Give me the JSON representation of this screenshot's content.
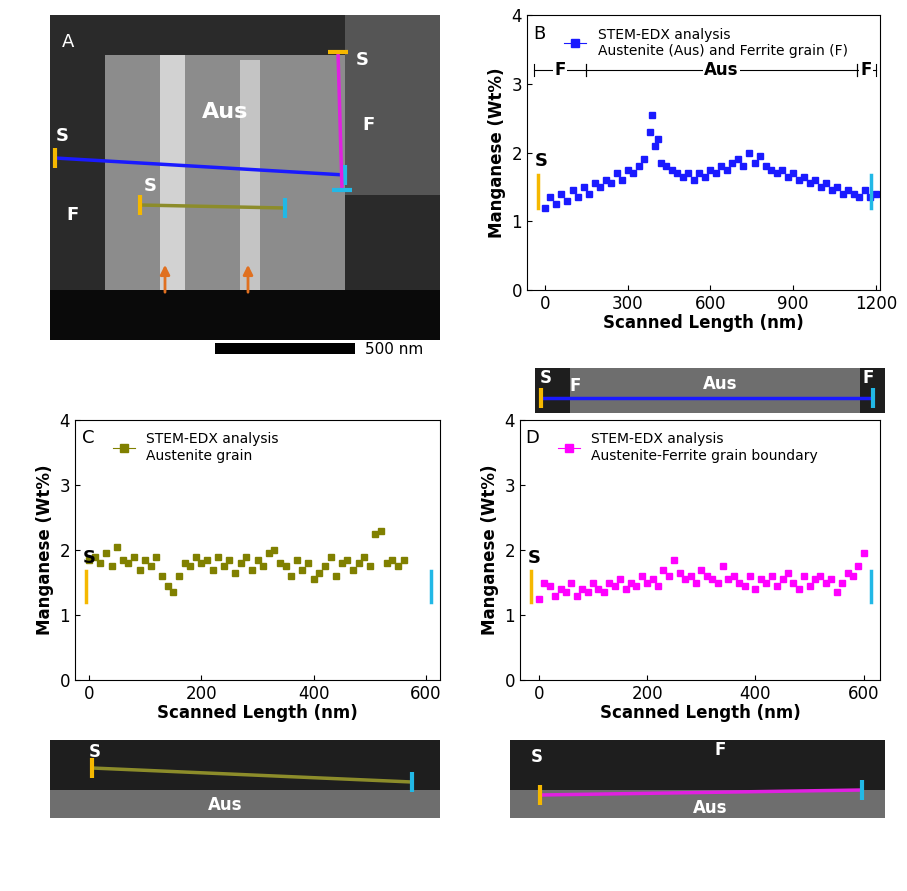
{
  "image_panel": {
    "panel_label": "A",
    "grain_label": "Aus",
    "scan_start_labels": [
      "S",
      "S",
      "S"
    ],
    "ferrite_labels": [
      "F",
      "F"
    ],
    "scale_bar": "500 nm"
  },
  "chart_data": [
    {
      "type": "scatter",
      "panel_label": "B",
      "scan_start_label": "S",
      "x_label": "Scanned Length (nm)",
      "y_label": "Manganese (Wt%)",
      "xlim": [
        -65,
        1215
      ],
      "xticks": [
        0,
        300,
        600,
        900,
        1200
      ],
      "ylim": [
        0,
        4
      ],
      "yticks": [
        0,
        1,
        2,
        3,
        4
      ],
      "legend": "upper left",
      "regions": [
        {
          "label": "F",
          "from": -40,
          "to": 150
        },
        {
          "label": "Aus",
          "from": 150,
          "to": 1130
        },
        {
          "label": "F",
          "from": 1130,
          "to": 1200
        }
      ],
      "image_strip": [
        "S",
        "F",
        "Aus",
        "F"
      ],
      "x": [
        0,
        20,
        40,
        60,
        80,
        100,
        120,
        140,
        160,
        180,
        200,
        220,
        240,
        260,
        280,
        300,
        320,
        340,
        360,
        380,
        390,
        400,
        410,
        420,
        440,
        460,
        480,
        500,
        520,
        540,
        560,
        580,
        600,
        620,
        640,
        660,
        680,
        700,
        720,
        740,
        760,
        780,
        800,
        820,
        840,
        860,
        880,
        900,
        920,
        940,
        960,
        980,
        1000,
        1020,
        1040,
        1060,
        1080,
        1100,
        1120,
        1140,
        1160,
        1180,
        1200
      ],
      "series": [
        {
          "name": "STEM-EDX analysis\nAustenite (Aus) and Ferrite grain (F)",
          "color": "#1a1aff",
          "marker": "square",
          "line_style": "none",
          "values": [
            1.2,
            1.35,
            1.25,
            1.4,
            1.3,
            1.45,
            1.35,
            1.5,
            1.4,
            1.55,
            1.5,
            1.6,
            1.55,
            1.7,
            1.6,
            1.75,
            1.7,
            1.8,
            1.9,
            2.3,
            2.55,
            2.1,
            2.2,
            1.85,
            1.8,
            1.75,
            1.7,
            1.65,
            1.7,
            1.6,
            1.7,
            1.65,
            1.75,
            1.7,
            1.8,
            1.75,
            1.85,
            1.9,
            1.8,
            2.0,
            1.85,
            1.95,
            1.8,
            1.75,
            1.7,
            1.75,
            1.65,
            1.7,
            1.6,
            1.65,
            1.55,
            1.6,
            1.5,
            1.55,
            1.45,
            1.5,
            1.4,
            1.45,
            1.4,
            1.35,
            1.45,
            1.35,
            1.4
          ]
        }
      ]
    },
    {
      "type": "scatter",
      "panel_label": "C",
      "scan_start_label": "S",
      "x_label": "Scanned Length (nm)",
      "y_label": "Manganese (Wt%)",
      "xlim": [
        -25,
        625
      ],
      "xticks": [
        0,
        200,
        400,
        600
      ],
      "ylim": [
        0,
        4
      ],
      "yticks": [
        0,
        1,
        2,
        3,
        4
      ],
      "legend": "upper left",
      "image_strip": [
        "S",
        "Aus"
      ],
      "x": [
        0,
        10,
        20,
        30,
        40,
        50,
        60,
        70,
        80,
        90,
        100,
        110,
        120,
        130,
        140,
        150,
        160,
        170,
        180,
        190,
        200,
        210,
        220,
        230,
        240,
        250,
        260,
        270,
        280,
        290,
        300,
        310,
        320,
        330,
        340,
        350,
        360,
        370,
        380,
        390,
        400,
        410,
        420,
        430,
        440,
        450,
        460,
        470,
        480,
        490,
        500,
        510,
        520,
        530,
        540,
        550,
        560
      ],
      "series": [
        {
          "name": "STEM-EDX analysis\nAustenite grain",
          "color": "#808000",
          "marker": "square",
          "line_style": "none",
          "values": [
            1.85,
            1.9,
            1.8,
            1.95,
            1.75,
            2.05,
            1.85,
            1.8,
            1.9,
            1.7,
            1.85,
            1.75,
            1.9,
            1.6,
            1.45,
            1.35,
            1.6,
            1.8,
            1.75,
            1.9,
            1.8,
            1.85,
            1.7,
            1.9,
            1.75,
            1.85,
            1.65,
            1.8,
            1.9,
            1.7,
            1.85,
            1.75,
            1.95,
            2.0,
            1.8,
            1.75,
            1.6,
            1.85,
            1.7,
            1.8,
            1.55,
            1.65,
            1.75,
            1.9,
            1.6,
            1.8,
            1.85,
            1.7,
            1.8,
            1.9,
            1.75,
            2.25,
            2.3,
            1.8,
            1.85,
            1.75,
            1.85
          ]
        }
      ]
    },
    {
      "type": "scatter",
      "panel_label": "D",
      "scan_start_label": "S",
      "x_label": "Scanned Length (nm)",
      "y_label": "Manganese (Wt%)",
      "xlim": [
        -35,
        630
      ],
      "xticks": [
        0,
        200,
        400,
        600
      ],
      "ylim": [
        0,
        4
      ],
      "yticks": [
        0,
        1,
        2,
        3,
        4
      ],
      "legend": "upper left",
      "image_strip": [
        "S",
        "F",
        "Aus"
      ],
      "x": [
        0,
        10,
        20,
        30,
        40,
        50,
        60,
        70,
        80,
        90,
        100,
        110,
        120,
        130,
        140,
        150,
        160,
        170,
        180,
        190,
        200,
        210,
        220,
        230,
        240,
        250,
        260,
        270,
        280,
        290,
        300,
        310,
        320,
        330,
        340,
        350,
        360,
        370,
        380,
        390,
        400,
        410,
        420,
        430,
        440,
        450,
        460,
        470,
        480,
        490,
        500,
        510,
        520,
        530,
        540,
        550,
        560,
        570,
        580,
        590,
        600
      ],
      "series": [
        {
          "name": "STEM-EDX analysis\nAustenite-Ferrite grain boundary",
          "color": "#ff00ff",
          "marker": "square",
          "line_style": "none",
          "values": [
            1.25,
            1.5,
            1.45,
            1.3,
            1.4,
            1.35,
            1.5,
            1.3,
            1.4,
            1.35,
            1.5,
            1.4,
            1.35,
            1.5,
            1.45,
            1.55,
            1.4,
            1.5,
            1.45,
            1.6,
            1.5,
            1.55,
            1.45,
            1.7,
            1.6,
            1.85,
            1.65,
            1.55,
            1.6,
            1.5,
            1.7,
            1.6,
            1.55,
            1.5,
            1.75,
            1.55,
            1.6,
            1.5,
            1.45,
            1.6,
            1.4,
            1.55,
            1.5,
            1.6,
            1.45,
            1.55,
            1.65,
            1.5,
            1.4,
            1.6,
            1.45,
            1.55,
            1.6,
            1.5,
            1.55,
            1.35,
            1.5,
            1.65,
            1.6,
            1.75,
            1.95
          ]
        }
      ]
    }
  ]
}
